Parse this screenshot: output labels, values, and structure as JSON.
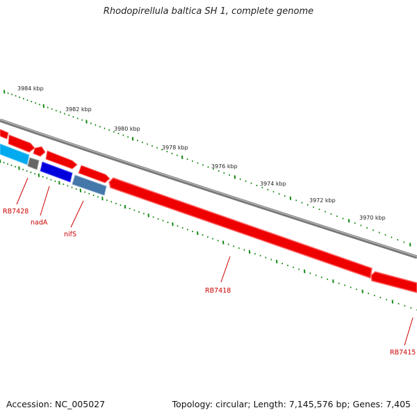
{
  "title": "Rhodopirellula baltica SH 1, complete genome",
  "footer": {
    "accession": "Accession: NC_005027",
    "summary": "Topology: circular; Length: 7,145,576 bp; Genes: 7,405"
  },
  "ruler": {
    "labels": [
      "3984 kbp",
      "3982 kbp",
      "3980 kbp",
      "3978 kbp",
      "3976 kbp",
      "3974 kbp",
      "3972 kbp",
      "3970 kbp"
    ]
  },
  "genes": [
    {
      "name": "RB7428",
      "color": "#00aaee"
    },
    {
      "name": "nadA",
      "color": "#0000dd"
    },
    {
      "name": "nifS",
      "color": "#4477aa"
    },
    {
      "name": "RB7418",
      "color": "#ee0000"
    },
    {
      "name": "RB7415",
      "color": "#ee0000"
    }
  ],
  "colors": {
    "backbone": "#888888",
    "tick": "#118811",
    "forward_gene": "#ee0000",
    "unknown_gene": "#666666"
  }
}
